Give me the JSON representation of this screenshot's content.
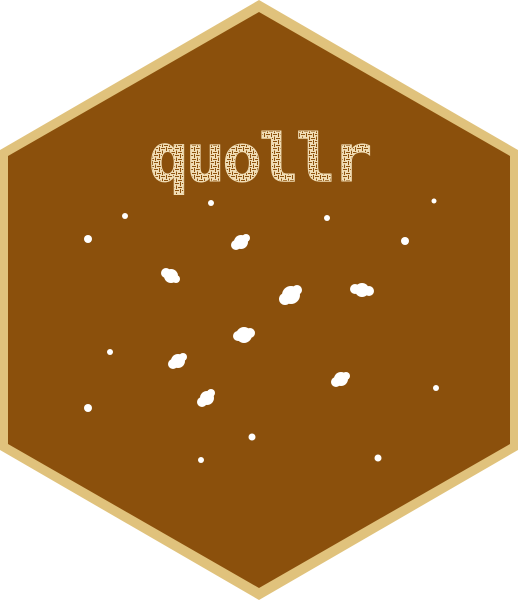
{
  "logo": {
    "title": "quollr",
    "colors": {
      "border": "#E0C27C",
      "fill": "#8B500C",
      "text": "#F0DCB4",
      "text_maze": "#8B500C",
      "dots": "#FFFFFF"
    }
  }
}
